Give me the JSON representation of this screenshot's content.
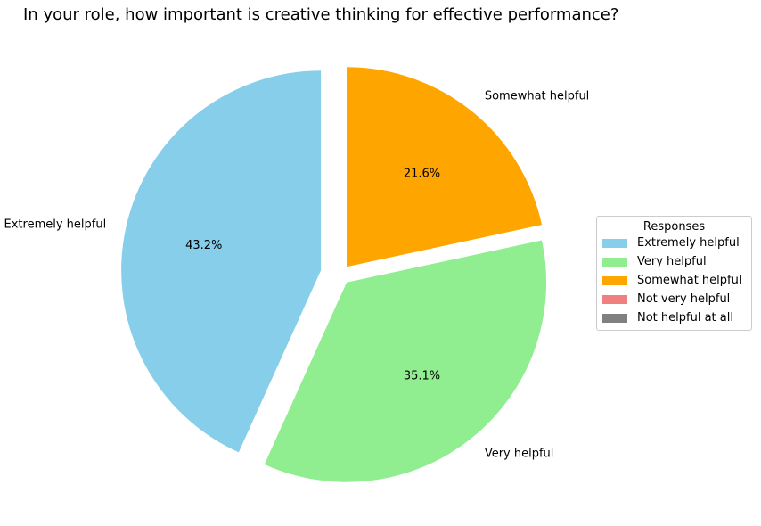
{
  "chart_data": {
    "type": "pie",
    "title": "In your role, how important is creative thinking for effective performance?",
    "legend_title": "Responses",
    "legend_position": "right",
    "categories": [
      "Extremely helpful",
      "Very helpful",
      "Somewhat helpful",
      "Not very helpful",
      "Not helpful at all"
    ],
    "values": [
      43.2,
      35.1,
      21.6,
      0,
      0
    ],
    "value_labels": [
      "43.2%",
      "35.1%",
      "21.6%",
      "",
      ""
    ],
    "colors": [
      "#87ceeb",
      "#90ee90",
      "#ffa500",
      "#f08080",
      "#808080"
    ],
    "start_angle_deg": 90,
    "direction": "counterclockwise",
    "explode": [
      0.1,
      0.05,
      0.05,
      0,
      0
    ]
  }
}
